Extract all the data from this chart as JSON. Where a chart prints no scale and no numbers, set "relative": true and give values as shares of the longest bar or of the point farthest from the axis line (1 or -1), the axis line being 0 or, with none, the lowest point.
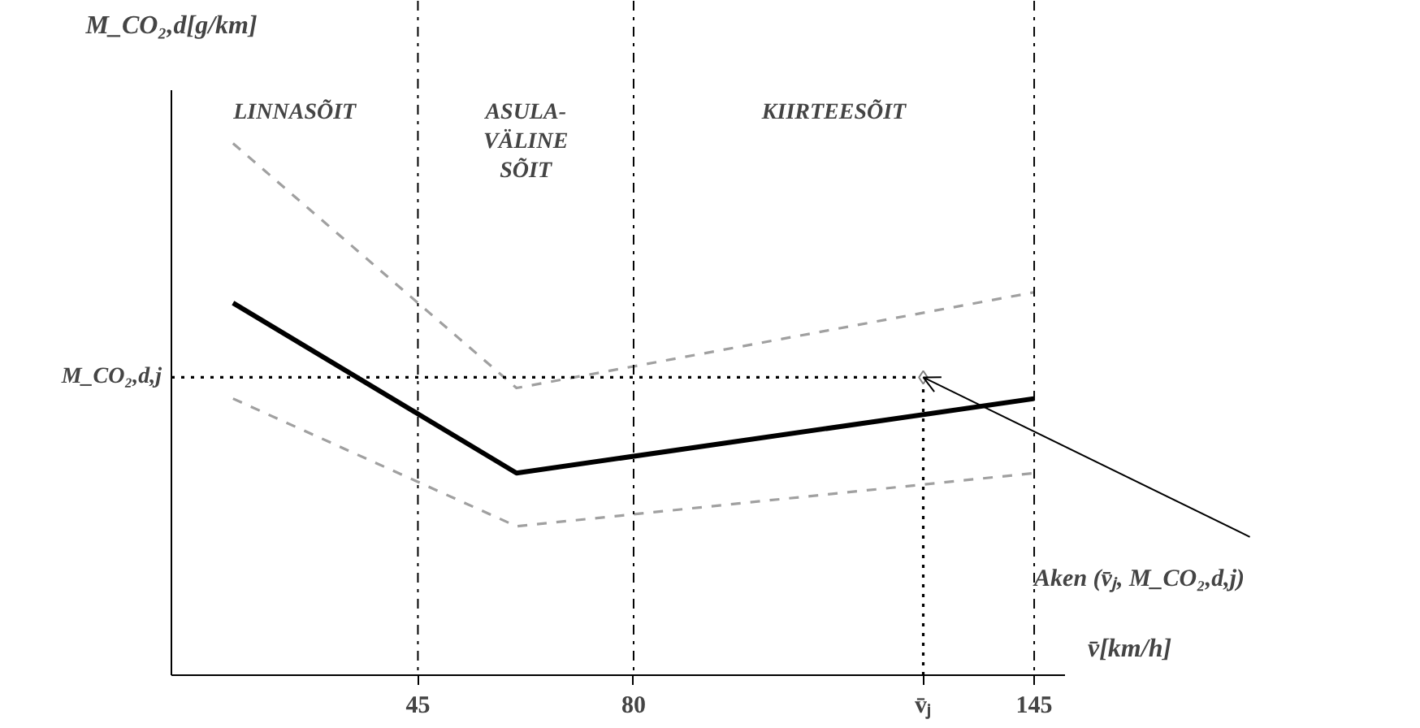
{
  "chart_data": {
    "type": "line",
    "relative": true,
    "xlabel": "v̄[km/h]",
    "ylabel": "M_CO₂,d[g/km]",
    "xlim": [
      5,
      150
    ],
    "xticks": [
      45,
      80,
      {
        "value": 127,
        "label": "v̄ⱼ"
      },
      145
    ],
    "series": [
      {
        "color": "#a0a0a0",
        "line_style": "dashed",
        "x": [
          15,
          61,
          145
        ],
        "values": [
          1.0,
          0.54,
          0.72
        ]
      },
      {
        "color": "#000000",
        "line_style": "solid",
        "x": [
          15,
          61,
          145
        ],
        "values": [
          0.7,
          0.38,
          0.52
        ]
      },
      {
        "color": "#a0a0a0",
        "line_style": "dashed",
        "x": [
          15,
          61,
          145
        ],
        "values": [
          0.52,
          0.28,
          0.38
        ]
      },
      {
        "color": "#000000",
        "line_style": "dotted",
        "x": [
          5,
          127
        ],
        "values": [
          0.56,
          0.56
        ]
      },
      {
        "color": "#000000",
        "line_style": "dotted",
        "x": [
          127,
          127
        ],
        "values": [
          0,
          0.56
        ]
      },
      {
        "type": "scatter",
        "color": "#808080",
        "marker": "diamond",
        "x": [
          127
        ],
        "values": [
          0.56
        ]
      }
    ],
    "ref_lines": [
      {
        "axis": "x",
        "value": 45,
        "line_style": "dashdot"
      },
      {
        "axis": "x",
        "value": 80,
        "line_style": "dashdot"
      },
      {
        "axis": "x",
        "value": 145,
        "line_style": "dashdot"
      }
    ],
    "annotations": [
      "LINNASÕIT",
      "ASULA-\nVÄLINE\nSÕIT",
      "KIIRTEESÕIT",
      {
        "text": "M_CO₂,d,j",
        "x": 5,
        "y": 0.56
      },
      {
        "text": "Aken   (v̄ⱼ, M_CO₂,d,j)",
        "x": 127,
        "y": 0.56
      }
    ],
    "grid": false
  }
}
